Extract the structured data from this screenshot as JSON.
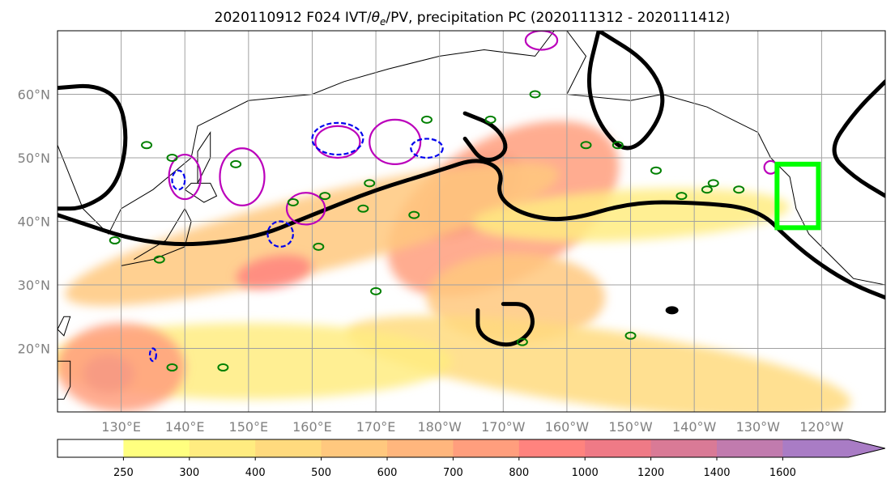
{
  "chart_data": {
    "type": "map",
    "title": "2020110912 F024 IVT/θe/PV, precipitation PC (2020111312 - 2020111412)",
    "title_parts": {
      "prefix": "2020110912 F024 IVT/",
      "theta": "θ",
      "theta_sub": "e",
      "suffix": "/PV, precipitation PC (2020111312 - 2020111412)"
    },
    "lon_range": [
      120,
      250
    ],
    "lat_range": [
      10,
      70
    ],
    "x_ticks": [
      {
        "lon": 130,
        "label": "130°E"
      },
      {
        "lon": 140,
        "label": "140°E"
      },
      {
        "lon": 150,
        "label": "150°E"
      },
      {
        "lon": 160,
        "label": "160°E"
      },
      {
        "lon": 170,
        "label": "170°E"
      },
      {
        "lon": 180,
        "label": "180°W"
      },
      {
        "lon": 190,
        "label": "170°W"
      },
      {
        "lon": 200,
        "label": "160°W"
      },
      {
        "lon": 210,
        "label": "150°W"
      },
      {
        "lon": 220,
        "label": "140°W"
      },
      {
        "lon": 230,
        "label": "130°W"
      },
      {
        "lon": 240,
        "label": "120°W"
      }
    ],
    "y_ticks": [
      {
        "lat": 20,
        "label": "20°N"
      },
      {
        "lat": 30,
        "label": "30°N"
      },
      {
        "lat": 40,
        "label": "40°N"
      },
      {
        "lat": 50,
        "label": "50°N"
      },
      {
        "lat": 60,
        "label": "60°N"
      }
    ],
    "grid": true,
    "colorbar": {
      "levels": [
        250,
        300,
        400,
        500,
        600,
        700,
        800,
        1000,
        1200,
        1400,
        1600
      ],
      "colors": [
        "#ffffff",
        "#ffff7f",
        "#ffec80",
        "#ffda7e",
        "#ffc87e",
        "#ffb67d",
        "#ff9e7d",
        "#ff837e",
        "#ef7a86",
        "#d97a96",
        "#c17bae",
        "#a97cc5"
      ],
      "extend": "max"
    },
    "ivt_shading": [
      {
        "lon": 185,
        "lat": 44,
        "level": 1200,
        "rx": 9,
        "ry": 5,
        "rot": -35
      },
      {
        "lon": 190,
        "lat": 42,
        "level": 700,
        "rx": 20,
        "ry": 11,
        "rot": -30
      },
      {
        "lon": 160,
        "lat": 38,
        "level": 500,
        "rx": 40,
        "ry": 6,
        "rot": -14
      },
      {
        "lon": 154,
        "lat": 32,
        "level": 800,
        "rx": 6,
        "ry": 2.5,
        "rot": -10
      },
      {
        "lon": 210,
        "lat": 41,
        "level": 300,
        "rx": 25,
        "ry": 4,
        "rot": -3
      },
      {
        "lon": 192,
        "lat": 28,
        "level": 500,
        "rx": 14,
        "ry": 7,
        "rot": 0
      },
      {
        "lon": 205,
        "lat": 17,
        "level": 400,
        "rx": 40,
        "ry": 6,
        "rot": 8
      },
      {
        "lon": 150,
        "lat": 18,
        "level": 300,
        "rx": 32,
        "ry": 6,
        "rot": 0
      },
      {
        "lon": 128,
        "lat": 16,
        "level": 1400,
        "rx": 4,
        "ry": 3,
        "rot": 0
      },
      {
        "lon": 130,
        "lat": 17,
        "level": 700,
        "rx": 10,
        "ry": 7,
        "rot": 0
      }
    ],
    "pv_contour": [
      [
        [
          120,
          41
        ],
        [
          135,
          36
        ],
        [
          150,
          37
        ],
        [
          160,
          41
        ],
        [
          170,
          45
        ],
        [
          180,
          48
        ],
        [
          186,
          50
        ],
        [
          190,
          48
        ],
        [
          189,
          44
        ],
        [
          193,
          41
        ],
        [
          200,
          40
        ],
        [
          210,
          43
        ],
        [
          220,
          43
        ],
        [
          230,
          42
        ],
        [
          235,
          37
        ],
        [
          240,
          33
        ],
        [
          245,
          30
        ],
        [
          250,
          28
        ]
      ],
      [
        [
          120,
          61
        ],
        [
          126,
          61.5
        ],
        [
          130,
          59
        ],
        [
          131,
          52
        ],
        [
          129,
          45
        ],
        [
          124,
          42
        ],
        [
          120,
          42
        ]
      ],
      [
        [
          184,
          57
        ],
        [
          189,
          55
        ],
        [
          191,
          51
        ],
        [
          187,
          49
        ],
        [
          184,
          53
        ]
      ],
      [
        [
          190,
          27
        ],
        [
          194,
          27
        ],
        [
          195,
          23
        ],
        [
          191,
          20
        ],
        [
          186,
          22
        ],
        [
          186,
          26
        ]
      ],
      [
        [
          205,
          70
        ],
        [
          213,
          65
        ],
        [
          216,
          58
        ],
        [
          210,
          50
        ],
        [
          205,
          55
        ],
        [
          203,
          62
        ],
        [
          205,
          70
        ]
      ],
      [
        [
          250,
          62
        ],
        [
          245,
          57
        ],
        [
          241,
          51
        ],
        [
          245,
          47
        ],
        [
          250,
          44
        ]
      ]
    ],
    "theta_e_contours": [
      {
        "lon": 140,
        "lat": 47,
        "rx": 2.5,
        "ry": 3.5
      },
      {
        "lon": 149,
        "lat": 47,
        "rx": 3.5,
        "ry": 4.5
      },
      {
        "lon": 159,
        "lat": 42,
        "rx": 3,
        "ry": 2.5
      },
      {
        "lon": 164,
        "lat": 52.5,
        "rx": 3.5,
        "ry": 2.5
      },
      {
        "lon": 173,
        "lat": 52.5,
        "rx": 4,
        "ry": 3.5
      },
      {
        "lon": 196,
        "lat": 68.5,
        "rx": 2.5,
        "ry": 1.5
      },
      {
        "lon": 232,
        "lat": 48.5,
        "rx": 1,
        "ry": 1
      }
    ],
    "pv_neg_contours": [
      {
        "lon": 139,
        "lat": 46.5,
        "rx": 1,
        "ry": 1.5
      },
      {
        "lon": 155,
        "lat": 38,
        "rx": 2,
        "ry": 2
      },
      {
        "lon": 164,
        "lat": 53,
        "rx": 4,
        "ry": 2.5
      },
      {
        "lon": 178,
        "lat": 51.5,
        "rx": 2.5,
        "ry": 1.5
      },
      {
        "lon": 135,
        "lat": 19,
        "rx": 0.5,
        "ry": 1
      }
    ],
    "precip_pc_box": {
      "lon_min": 233,
      "lon_max": 239.5,
      "lat_min": 39,
      "lat_max": 49
    }
  }
}
